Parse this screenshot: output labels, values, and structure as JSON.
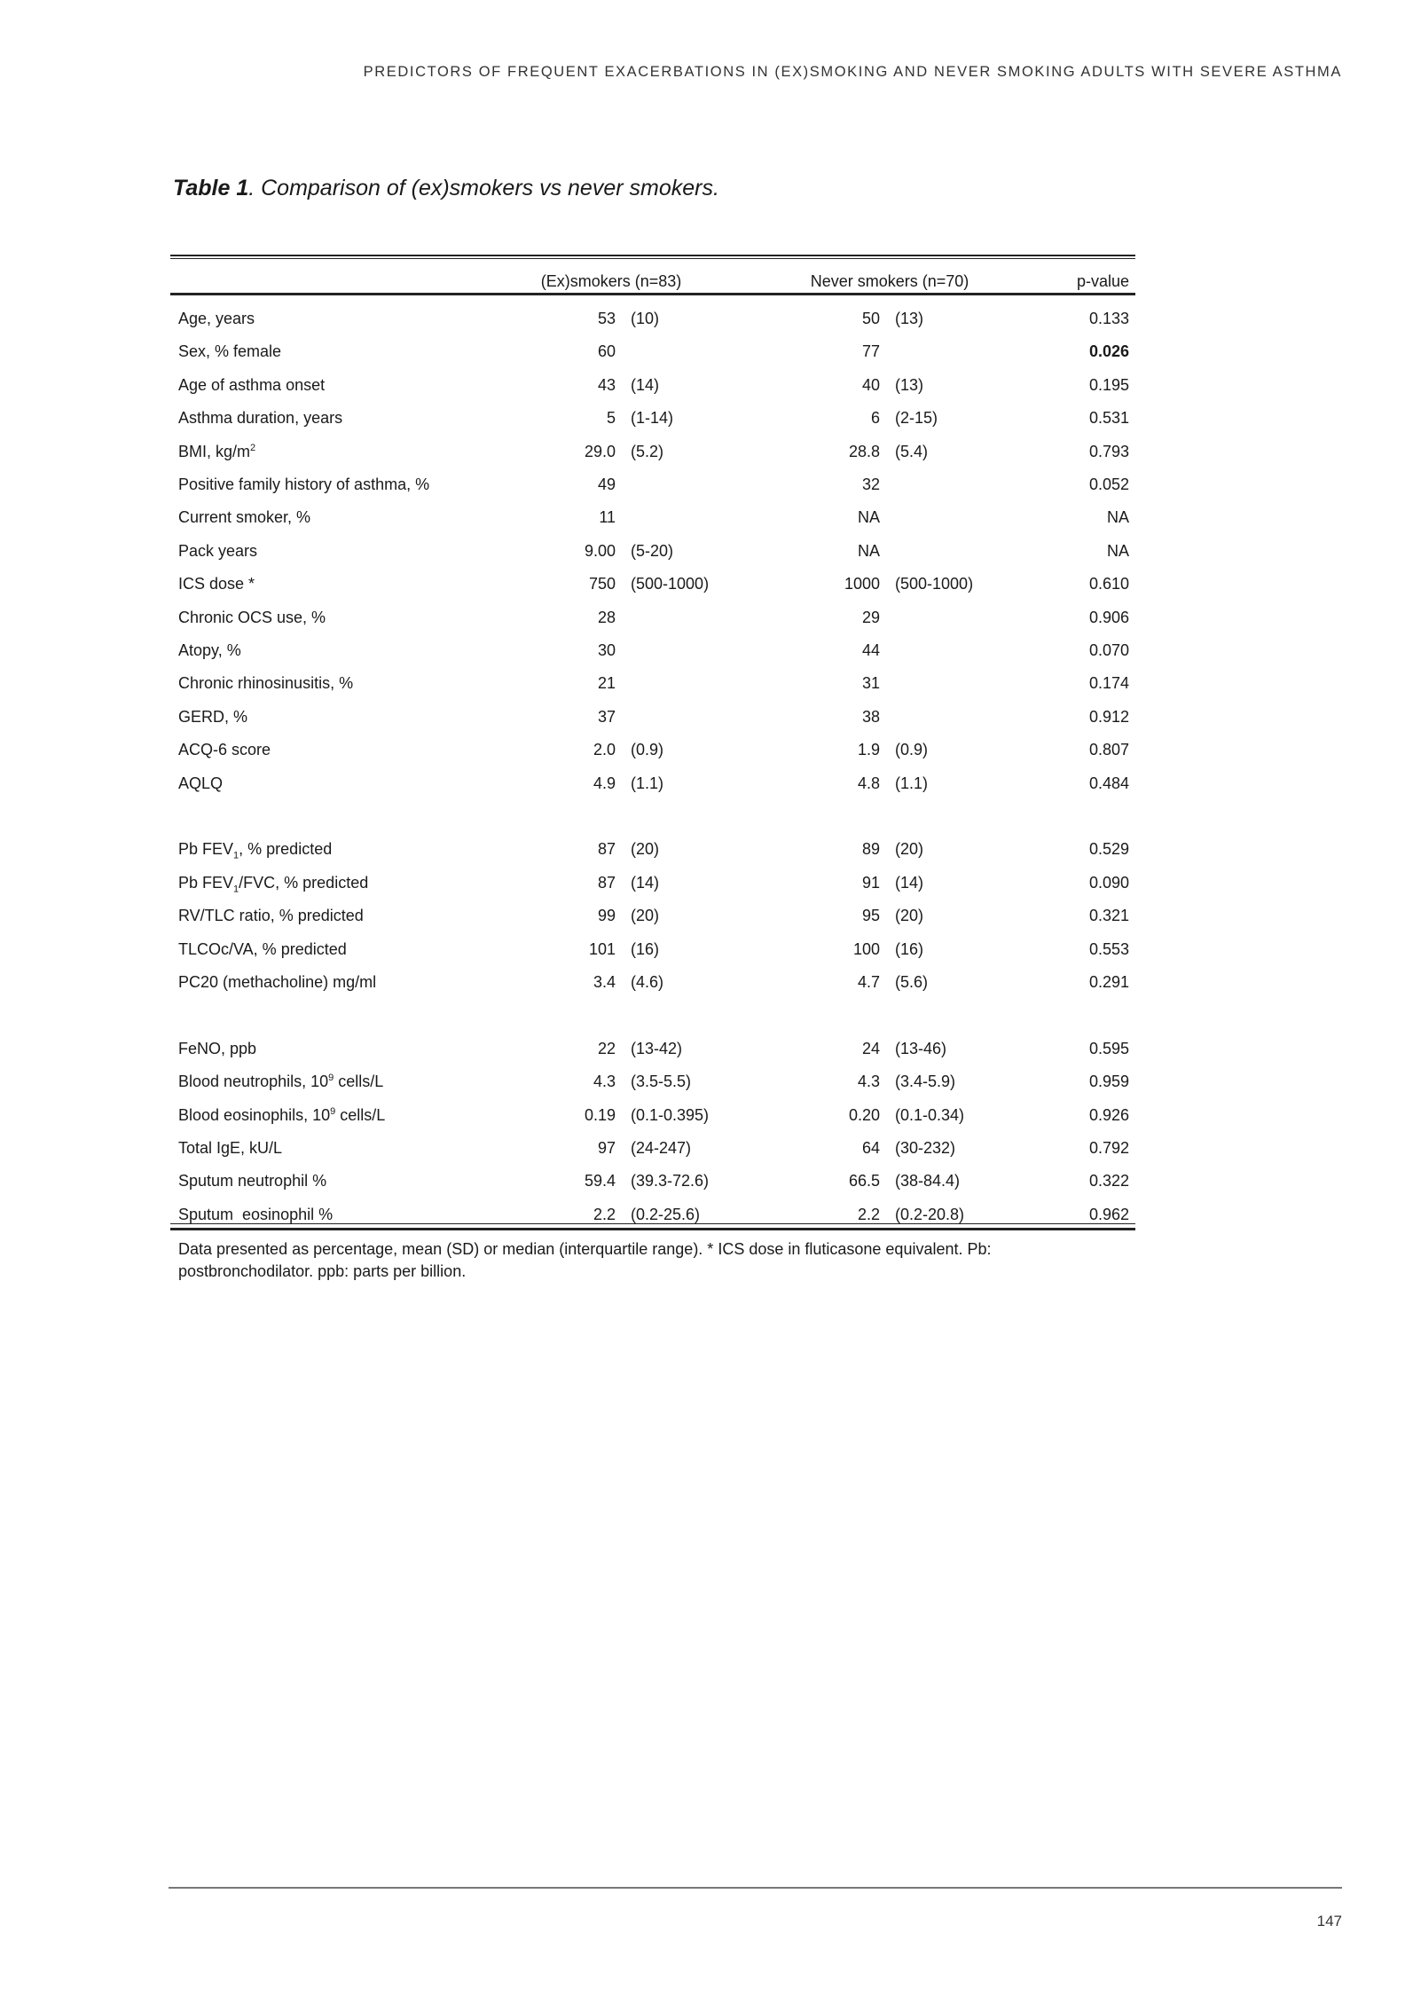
{
  "running_head": "PREDICTORS OF FREQUENT EXACERBATIONS IN (EX)SMOKING AND NEVER SMOKING ADULTS WITH SEVERE ASTHMA",
  "caption": {
    "label": "Table 1",
    "text": ". Comparison of (ex)smokers vs never smokers."
  },
  "table": {
    "headers": [
      "(Ex)smokers (n=83)",
      "Never smokers (n=70)",
      "p-value"
    ],
    "groups": [
      [
        {
          "pre": "Age, years",
          "ex": "53",
          "ex_sd": "(10)",
          "nv": "50",
          "nv_sd": "(13)",
          "p": "0.133"
        },
        {
          "pre": "Sex, % female",
          "ex": "60",
          "ex_sd": "",
          "nv": "77",
          "nv_sd": "",
          "p": "0.026",
          "p_bold": true
        },
        {
          "pre": "Age of asthma onset",
          "ex": "43",
          "ex_sd": "(14)",
          "nv": "40",
          "nv_sd": "(13)",
          "p": "0.195"
        },
        {
          "pre": "Asthma duration, years",
          "ex": "5",
          "ex_sd": "(1-14)",
          "nv": "6",
          "nv_sd": "(2-15)",
          "p": "0.531"
        },
        {
          "pre": "BMI, kg/m",
          "sup": "2",
          "ex": "29.0",
          "ex_sd": "(5.2)",
          "nv": "28.8",
          "nv_sd": "(5.4)",
          "p": "0.793"
        },
        {
          "pre": "Positive family history of asthma, %",
          "ex": "49",
          "ex_sd": "",
          "nv": "32",
          "nv_sd": "",
          "p": "0.052"
        },
        {
          "pre": "Current smoker, %",
          "ex": "11",
          "ex_sd": "",
          "nv": "NA",
          "nv_sd": "",
          "p": "NA"
        },
        {
          "pre": "Pack years",
          "ex": "9.00",
          "ex_sd": "(5-20)",
          "nv": "NA",
          "nv_sd": "",
          "p": "NA"
        },
        {
          "pre": "ICS dose *",
          "ex": "750",
          "ex_sd": "(500-1000)",
          "nv": "1000",
          "nv_sd": "(500-1000)",
          "p": "0.610"
        },
        {
          "pre": "Chronic OCS use, %",
          "ex": "28",
          "ex_sd": "",
          "nv": "29",
          "nv_sd": "",
          "p": "0.906"
        },
        {
          "pre": "Atopy, %",
          "ex": "30",
          "ex_sd": "",
          "nv": "44",
          "nv_sd": "",
          "p": "0.070"
        },
        {
          "pre": "Chronic rhinosinusitis, %",
          "ex": "21",
          "ex_sd": "",
          "nv": "31",
          "nv_sd": "",
          "p": "0.174"
        },
        {
          "pre": "GERD, %",
          "ex": "37",
          "ex_sd": "",
          "nv": "38",
          "nv_sd": "",
          "p": "0.912"
        },
        {
          "pre": "ACQ-6 score",
          "ex": "2.0",
          "ex_sd": "(0.9)",
          "nv": "1.9",
          "nv_sd": "(0.9)",
          "p": "0.807"
        },
        {
          "pre": "AQLQ",
          "ex": "4.9",
          "ex_sd": "(1.1)",
          "nv": "4.8",
          "nv_sd": "(1.1)",
          "p": "0.484"
        }
      ],
      [
        {
          "pre": "Pb FEV",
          "sub": "1",
          "post": ", % predicted",
          "ex": "87",
          "ex_sd": "(20)",
          "nv": "89",
          "nv_sd": "(20)",
          "p": "0.529"
        },
        {
          "pre": "Pb FEV",
          "sub": "1",
          "post": "/FVC, % predicted",
          "ex": "87",
          "ex_sd": "(14)",
          "nv": "91",
          "nv_sd": "(14)",
          "p": "0.090"
        },
        {
          "pre": "RV/TLC ratio, % predicted",
          "ex": "99",
          "ex_sd": "(20)",
          "nv": "95",
          "nv_sd": "(20)",
          "p": "0.321"
        },
        {
          "pre": "TLCOc/VA, % predicted",
          "ex": "101",
          "ex_sd": "(16)",
          "nv": "100",
          "nv_sd": "(16)",
          "p": "0.553"
        },
        {
          "pre": "PC20 (methacholine) mg/ml",
          "ex": "3.4",
          "ex_sd": "(4.6)",
          "nv": "4.7",
          "nv_sd": "(5.6)",
          "p": "0.291"
        }
      ],
      [
        {
          "pre": "FeNO, ppb",
          "ex": "22",
          "ex_sd": "(13-42)",
          "nv": "24",
          "nv_sd": "(13-46)",
          "p": "0.595"
        },
        {
          "pre": "Blood neutrophils, 10",
          "sup": "9",
          "post": " cells/L",
          "ex": "4.3",
          "ex_sd": "(3.5-5.5)",
          "nv": "4.3",
          "nv_sd": "(3.4-5.9)",
          "p": "0.959"
        },
        {
          "pre": "Blood eosinophils, 10",
          "sup": "9",
          "post": " cells/L",
          "ex": "0.19",
          "ex_sd": "(0.1-0.395)",
          "nv": "0.20",
          "nv_sd": "(0.1-0.34)",
          "p": "0.926"
        },
        {
          "pre": "Total IgE, kU/L",
          "ex": "97",
          "ex_sd": "(24-247)",
          "nv": "64",
          "nv_sd": "(30-232)",
          "p": "0.792"
        },
        {
          "pre": "Sputum neutrophil %",
          "ex": "59.4",
          "ex_sd": "(39.3-72.6)",
          "nv": "66.5",
          "nv_sd": "(38-84.4)",
          "p": "0.322"
        },
        {
          "pre": "Sputum  eosinophil %",
          "ex": "2.2",
          "ex_sd": "(0.2-25.6)",
          "nv": "2.2",
          "nv_sd": "(0.2-20.8)",
          "p": "0.962"
        }
      ]
    ],
    "footnote": [
      "Data presented as percentage, mean (SD) or median (interquartile range). * ICS dose in fluticasone equivalent. Pb:",
      "postbronchodilator. ppb: parts per billion."
    ]
  },
  "page_number": "147"
}
